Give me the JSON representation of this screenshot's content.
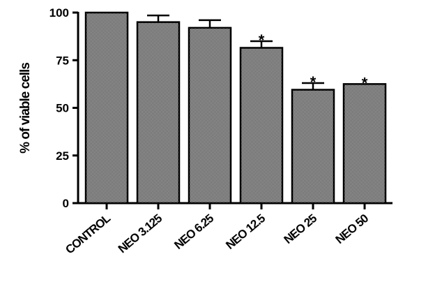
{
  "chart_data": {
    "type": "bar",
    "title": "",
    "xlabel": "",
    "ylabel": "% of viable cells",
    "ylim": [
      0,
      100
    ],
    "yticks": [
      0,
      25,
      50,
      75,
      100
    ],
    "grid": false,
    "fill_pattern": "checkered",
    "colors": {
      "bar_fill_a": "#ffffff",
      "bar_fill_b": "#000000",
      "axis": "#000000"
    },
    "categories": [
      "CONTROL",
      "NEO 3.125",
      "NEO 6.25",
      "NEO 12.5",
      "NEO 25",
      "NEO 50"
    ],
    "values": [
      100,
      95,
      92,
      81.5,
      59.5,
      62.5
    ],
    "errors": [
      0,
      3.5,
      4,
      3.5,
      3.5,
      0
    ],
    "significance": [
      "",
      "",
      "",
      "*",
      "*",
      "*"
    ]
  }
}
